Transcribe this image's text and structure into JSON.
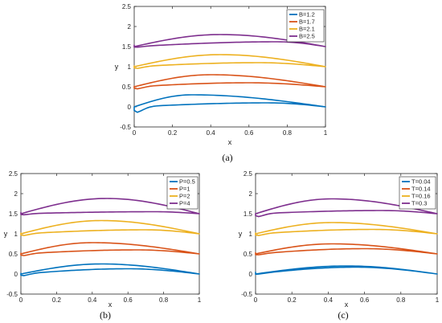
{
  "chart_data": [
    {
      "panel": "a",
      "caption": "(a)",
      "type": "line",
      "xlabel": "x",
      "ylabel": "y",
      "xlim": [
        0,
        1
      ],
      "ylim": [
        -0.5,
        2.5
      ],
      "xticks": [
        "0",
        "0.2",
        "0.4",
        "0.6",
        "0.8",
        "1"
      ],
      "yticks": [
        "-0.5",
        "0",
        "0.5",
        "1",
        "1.5",
        "2",
        "2.5"
      ],
      "legend_position": "top-right",
      "series": [
        {
          "name": "B=1.2",
          "color": "#0072BD",
          "offset": 0.0,
          "upper_max": 0.3,
          "upper_peak_x": 0.3,
          "lower_max": 0.1,
          "lower_peak_x": 0.7,
          "lower_min": -0.15
        },
        {
          "name": "B=1.7",
          "color": "#D95319",
          "offset": 0.5,
          "upper_max": 0.3,
          "upper_peak_x": 0.4,
          "lower_max": 0.1,
          "lower_peak_x": 0.6,
          "lower_min": -0.06
        },
        {
          "name": "B=2.1",
          "color": "#EDB120",
          "offset": 1.0,
          "upper_max": 0.3,
          "upper_peak_x": 0.45,
          "lower_max": 0.1,
          "lower_peak_x": 0.65,
          "lower_min": -0.05
        },
        {
          "name": "B=2.5",
          "color": "#7E2F8E",
          "offset": 1.5,
          "upper_max": 0.3,
          "upper_peak_x": 0.45,
          "lower_max": 0.12,
          "lower_peak_x": 0.75,
          "lower_min": -0.02
        }
      ]
    },
    {
      "panel": "b",
      "caption": "(b)",
      "type": "line",
      "xlabel": "x",
      "ylabel": "y",
      "xlim": [
        0,
        1
      ],
      "ylim": [
        -0.5,
        2.5
      ],
      "xticks": [
        "0",
        "0.2",
        "0.4",
        "0.6",
        "0.8",
        "1"
      ],
      "yticks": [
        "-0.5",
        "0",
        "0.5",
        "1",
        "1.5",
        "2",
        "2.5"
      ],
      "legend_position": "top-right",
      "series": [
        {
          "name": "P=0.5",
          "color": "#0072BD",
          "offset": 0.0,
          "upper_max": 0.25,
          "upper_peak_x": 0.45,
          "lower_max": 0.13,
          "lower_peak_x": 0.6,
          "lower_min": -0.05
        },
        {
          "name": "P=1",
          "color": "#D95319",
          "offset": 0.5,
          "upper_max": 0.28,
          "upper_peak_x": 0.4,
          "lower_max": 0.1,
          "lower_peak_x": 0.65,
          "lower_min": -0.05
        },
        {
          "name": "P=2",
          "color": "#EDB120",
          "offset": 1.0,
          "upper_max": 0.33,
          "upper_peak_x": 0.45,
          "lower_max": 0.1,
          "lower_peak_x": 0.7,
          "lower_min": -0.05
        },
        {
          "name": "P=4",
          "color": "#7E2F8E",
          "offset": 1.5,
          "upper_max": 0.38,
          "upper_peak_x": 0.48,
          "lower_max": 0.05,
          "lower_peak_x": 0.75,
          "lower_min": -0.03
        }
      ]
    },
    {
      "panel": "c",
      "caption": "(c)",
      "type": "line",
      "xlabel": "x",
      "ylabel": "y",
      "xlim": [
        0,
        1
      ],
      "ylim": [
        -0.5,
        2.5
      ],
      "xticks": [
        "0",
        "0.2",
        "0.4",
        "0.6",
        "0.8",
        "1"
      ],
      "yticks": [
        "-0.5",
        "0",
        "0.5",
        "1",
        "1.5",
        "2",
        "2.5"
      ],
      "legend_position": "top-right",
      "series": [
        {
          "name": "T=0.04",
          "color": "#0072BD",
          "offset": 0.0,
          "upper_max": 0.2,
          "upper_peak_x": 0.5,
          "lower_max": 0.17,
          "lower_peak_x": 0.55,
          "lower_min": -0.01
        },
        {
          "name": "T=0.14",
          "color": "#D95319",
          "offset": 0.5,
          "upper_max": 0.25,
          "upper_peak_x": 0.42,
          "lower_max": 0.13,
          "lower_peak_x": 0.6,
          "lower_min": -0.03
        },
        {
          "name": "T=0.16",
          "color": "#EDB120",
          "offset": 1.0,
          "upper_max": 0.28,
          "upper_peak_x": 0.42,
          "lower_max": 0.11,
          "lower_peak_x": 0.65,
          "lower_min": -0.05
        },
        {
          "name": "T=0.3",
          "color": "#7E2F8E",
          "offset": 1.5,
          "upper_max": 0.37,
          "upper_peak_x": 0.42,
          "lower_max": 0.08,
          "lower_peak_x": 0.7,
          "lower_min": -0.08
        }
      ]
    }
  ]
}
